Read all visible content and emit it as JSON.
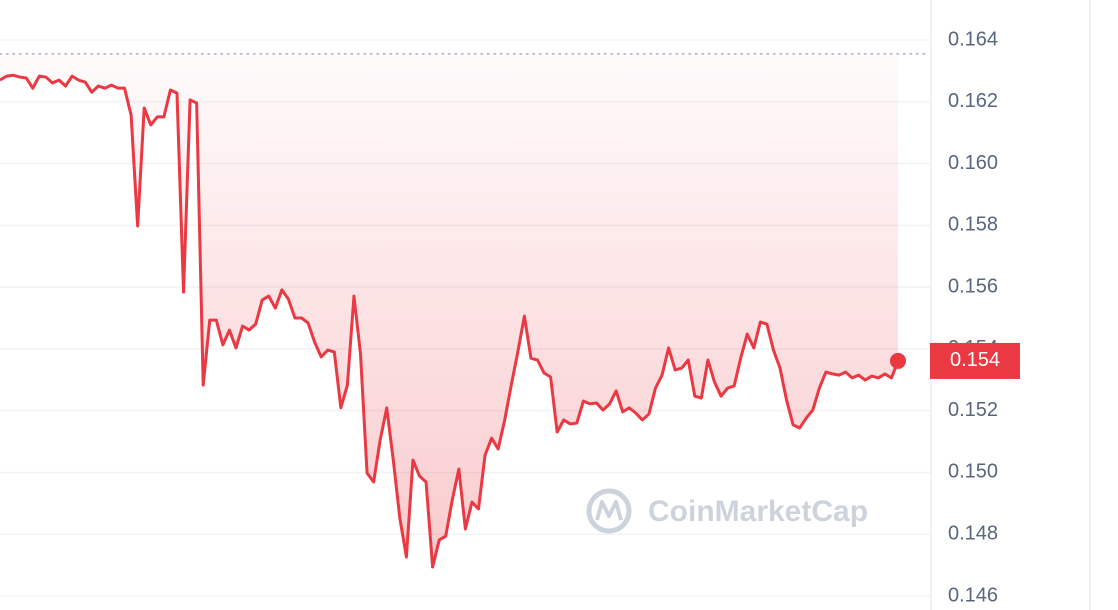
{
  "chart_data": {
    "type": "line",
    "color": "#ea3943",
    "ylim": [
      0.146,
      0.164
    ],
    "yticks": [
      0.146,
      0.148,
      {
        "value": 0.15,
        "label": "0.150"
      },
      0.152,
      0.154,
      0.156,
      0.158,
      {
        "value": 0.16,
        "label": "0.160"
      },
      0.162,
      0.164
    ],
    "grid": true,
    "reference_line": 0.16355,
    "last_price_label": "0.154",
    "watermark": "CoinMarketCap",
    "values": [
      0.1627,
      0.16283,
      0.16286,
      0.1628,
      0.16277,
      0.16244,
      0.16283,
      0.1628,
      0.16261,
      0.1627,
      0.16251,
      0.16283,
      0.1627,
      0.16264,
      0.16231,
      0.16251,
      0.16244,
      0.16254,
      0.16244,
      0.16244,
      0.16157,
      0.15798,
      0.1618,
      0.16125,
      0.16151,
      0.16151,
      0.16238,
      0.16228,
      0.15584,
      0.16206,
      0.16196,
      0.15283,
      0.15493,
      0.15493,
      0.15413,
      0.15461,
      0.15403,
      0.15474,
      0.15461,
      0.1548,
      0.15558,
      0.15571,
      0.15532,
      0.15591,
      0.15561,
      0.155,
      0.155,
      0.15484,
      0.15422,
      0.15374,
      0.15396,
      0.1539,
      0.15209,
      0.15283,
      0.15571,
      0.15383,
      0.14998,
      0.14969,
      0.15105,
      0.15209,
      0.1504,
      0.14852,
      0.14726,
      0.1504,
      0.14988,
      0.14969,
      0.14694,
      0.14781,
      0.14794,
      0.14911,
      0.15011,
      0.14817,
      0.14904,
      0.14882,
      0.15056,
      0.15111,
      0.15076,
      0.1517,
      0.15283,
      0.1539,
      0.15506,
      0.1537,
      0.15364,
      0.15322,
      0.15309,
      0.15131,
      0.1517,
      0.15157,
      0.1516,
      0.15231,
      0.15222,
      0.15225,
      0.15202,
      0.15222,
      0.15264,
      0.15196,
      0.15209,
      0.15192,
      0.1517,
      0.15189,
      0.15273,
      0.15315,
      0.15403,
      0.15332,
      0.15338,
      0.15364,
      0.15247,
      0.15241,
      0.15364,
      0.15293,
      0.15247,
      0.15273,
      0.1528,
      0.1537,
      0.15448,
      0.15403,
      0.15487,
      0.1548,
      0.15396,
      0.15338,
      0.15234,
      0.15154,
      0.15144,
      0.15176,
      0.15202,
      0.15273,
      0.15325,
      0.15319,
      0.15315,
      0.15325,
      0.15306,
      0.15315,
      0.15299,
      0.15312,
      0.15306,
      0.15319,
      0.15306,
      0.15361
    ]
  }
}
